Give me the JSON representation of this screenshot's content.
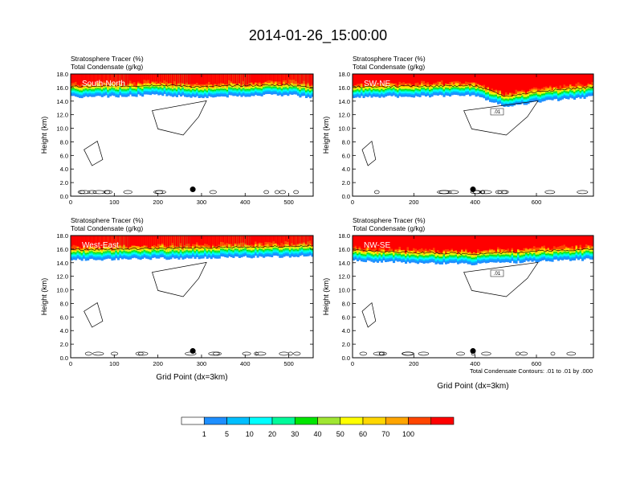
{
  "title": "2014-01-26_15:00:00",
  "colors": {
    "fill_levels": [
      "#ffffff",
      "#1e8fff",
      "#00bfff",
      "#00ffff",
      "#00fa9a",
      "#00e600",
      "#a0e632",
      "#ffff00",
      "#ffd700",
      "#ffa500",
      "#ff4500",
      "#ff0000"
    ],
    "contour": "#000000",
    "label_text_on_red": "#ffffff"
  },
  "legend": {
    "labels": [
      "1",
      "5",
      "10",
      "20",
      "30",
      "40",
      "50",
      "60",
      "70",
      "100"
    ]
  },
  "contour_note": "Total Condensate Contours: .01 to .01 by .000",
  "chart_data": [
    {
      "type": "heatmap",
      "label": "South-North",
      "title_lines": [
        "Stratosphere Tracer   (%)",
        "Total Condensate   (g/kg)"
      ],
      "ylabel": "Height (km)",
      "xlabel": "",
      "xlim": [
        0,
        556
      ],
      "ylim": [
        0,
        18
      ],
      "xticks": [
        "0",
        "100",
        "200",
        "300",
        "400",
        "500"
      ],
      "xtick_values": [
        0,
        100,
        200,
        300,
        400,
        500
      ],
      "yticks": [
        "0.0",
        "2.0",
        "4.0",
        "6.0",
        "8.0",
        "10.0",
        "12.0",
        "14.0",
        "16.0",
        "18.0"
      ],
      "tracer_base_km": [
        [
          0,
          14.6
        ],
        [
          100,
          14.7
        ],
        [
          200,
          14.9
        ],
        [
          300,
          14.6
        ],
        [
          400,
          14.8
        ],
        [
          500,
          14.9
        ],
        [
          556,
          14.5
        ]
      ],
      "marker_x": 280,
      "contour_label": "",
      "contour_labels": []
    },
    {
      "type": "heatmap",
      "label": "SW-NE",
      "title_lines": [
        "Stratosphere Tracer   (%)",
        "Total Condensate   (g/kg)"
      ],
      "ylabel": "Height (km)",
      "xlabel": "",
      "xlim": [
        0,
        786
      ],
      "ylim": [
        0,
        18
      ],
      "xticks": [
        "0",
        "200",
        "400",
        "600"
      ],
      "xtick_values": [
        0,
        200,
        400,
        600
      ],
      "yticks": [
        "0.0",
        "2.0",
        "4.0",
        "6.0",
        "8.0",
        "10.0",
        "12.0",
        "14.0",
        "16.0",
        "18.0"
      ],
      "tracer_base_km": [
        [
          0,
          14.6
        ],
        [
          200,
          14.7
        ],
        [
          400,
          14.8
        ],
        [
          500,
          13.2
        ],
        [
          620,
          14.0
        ],
        [
          786,
          14.6
        ]
      ],
      "marker_x": 393,
      "contour_label": "",
      "contour_labels": [
        ".01"
      ]
    },
    {
      "type": "heatmap",
      "label": "West-East",
      "title_lines": [
        "Stratosphere Tracer   (%)",
        "Total Condensate   (g/kg)"
      ],
      "ylabel": "Height (km)",
      "xlabel": "Grid Point (dx=3km)",
      "xlim": [
        0,
        556
      ],
      "ylim": [
        0,
        18
      ],
      "xticks": [
        "0",
        "100",
        "200",
        "300",
        "400",
        "500"
      ],
      "xtick_values": [
        0,
        100,
        200,
        300,
        400,
        500
      ],
      "yticks": [
        "0.0",
        "2.0",
        "4.0",
        "6.0",
        "8.0",
        "10.0",
        "12.0",
        "14.0",
        "16.0",
        "18.0"
      ],
      "tracer_base_km": [
        [
          0,
          14.4
        ],
        [
          200,
          14.6
        ],
        [
          400,
          14.8
        ],
        [
          556,
          15.0
        ]
      ],
      "marker_x": 280,
      "contour_label": "",
      "contour_labels": []
    },
    {
      "type": "heatmap",
      "label": "NW-SE",
      "title_lines": [
        "Stratosphere Tracer   (%)",
        "Total Condensate   (g/kg)"
      ],
      "ylabel": "Height (km)",
      "xlabel": "Grid Point (dx=3km)",
      "xlim": [
        0,
        786
      ],
      "ylim": [
        0,
        18
      ],
      "xticks": [
        "0",
        "200",
        "400",
        "600"
      ],
      "xtick_values": [
        0,
        200,
        400,
        600
      ],
      "yticks": [
        "0.0",
        "2.0",
        "4.0",
        "6.0",
        "8.0",
        "10.0",
        "12.0",
        "14.0",
        "16.0",
        "18.0"
      ],
      "tracer_base_km": [
        [
          0,
          14.3
        ],
        [
          200,
          14.0
        ],
        [
          400,
          13.8
        ],
        [
          600,
          14.2
        ],
        [
          786,
          14.5
        ]
      ],
      "marker_x": 393,
      "contour_label": "",
      "contour_labels": [
        ".01"
      ]
    }
  ]
}
